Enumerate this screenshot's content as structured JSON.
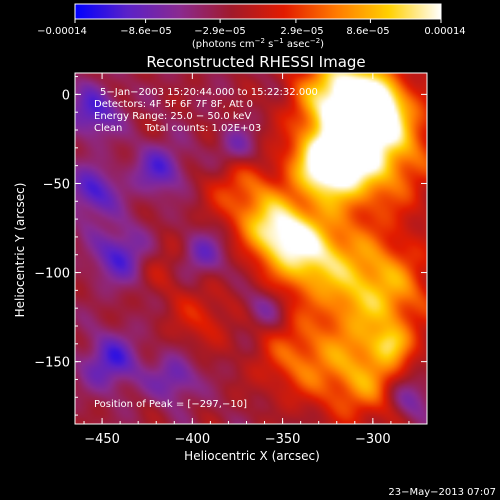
{
  "chart_data": {
    "type": "heatmap",
    "title": "Reconstructed RHESSI Image",
    "xlabel": "Heliocentric X (arcsec)",
    "ylabel": "Heliocentric Y (arcsec)",
    "xlim": [
      -465,
      -270
    ],
    "ylim": [
      -185,
      12
    ],
    "x_ticks": [
      -450,
      -400,
      -350,
      -300
    ],
    "x_tick_labels": [
      "−450",
      "−400",
      "−350",
      "−300"
    ],
    "y_ticks": [
      0,
      -50,
      -100,
      -150
    ],
    "y_tick_labels": [
      "0",
      "−50",
      "−100",
      "−150"
    ],
    "colorbar": {
      "range": [
        -0.00014,
        0.00014
      ],
      "tick_values": [
        -0.00014,
        -8.6e-05,
        -2.9e-05,
        2.9e-05,
        8.6e-05,
        0.00014
      ],
      "tick_labels": [
        "−0.00014",
        "−8.6e−05",
        "−2.9e−05",
        "2.9e−05",
        "8.6e−05",
        "0.00014"
      ],
      "units_line1": "(photons cm",
      "units_exp1": "−2",
      "units_line2": " s",
      "units_exp2": "−1",
      "units_line3": " asec",
      "units_exp3": "−2",
      "units_line4": ")",
      "stops": [
        "#0000ff",
        "#5a21c8",
        "#8a2a90",
        "#a11a2a",
        "#e21b00",
        "#ff7a00",
        "#ffd000",
        "#ffffff"
      ]
    },
    "annotations": {
      "time_range": "5−Jan−2003 15:20:44.000 to 15:22:32.000",
      "detectors": "Detectors: 4F 5F 6F 7F 8F, Att 0",
      "energy": "Energy Range: 25.0 − 50.0 keV",
      "algorithm": "Clean",
      "counts": "Total counts: 1.02E+03",
      "peak": "Position of Peak = [−297,−10]"
    },
    "image_blobs": [
      {
        "x": -303,
        "y": -28,
        "sigma": 24,
        "amp": 1.0
      },
      {
        "x": -318,
        "y": 2,
        "sigma": 16,
        "amp": 0.8
      },
      {
        "x": -325,
        "y": -40,
        "sigma": 13,
        "amp": 0.9
      },
      {
        "x": -300,
        "y": -8,
        "sigma": 11,
        "amp": 0.85
      },
      {
        "x": -338,
        "y": -88,
        "sigma": 16,
        "amp": 0.85
      },
      {
        "x": -355,
        "y": -75,
        "sigma": 12,
        "amp": 0.7
      },
      {
        "x": -300,
        "y": -110,
        "sigma": 22,
        "amp": 0.8
      },
      {
        "x": -305,
        "y": -160,
        "sigma": 18,
        "amp": 0.6
      },
      {
        "x": -342,
        "y": -148,
        "sigma": 16,
        "amp": 0.45
      },
      {
        "x": -372,
        "y": -55,
        "sigma": 14,
        "amp": 0.45
      },
      {
        "x": -415,
        "y": -95,
        "sigma": 11,
        "amp": 0.22
      },
      {
        "x": -395,
        "y": -125,
        "sigma": 12,
        "amp": 0.3
      },
      {
        "x": -455,
        "y": -55,
        "sigma": 10,
        "amp": -0.5
      },
      {
        "x": -418,
        "y": -42,
        "sigma": 10,
        "amp": -0.45
      },
      {
        "x": -440,
        "y": -90,
        "sigma": 11,
        "amp": -0.5
      },
      {
        "x": -395,
        "y": -90,
        "sigma": 9,
        "amp": -0.4
      },
      {
        "x": -445,
        "y": -150,
        "sigma": 11,
        "amp": -0.5
      },
      {
        "x": -410,
        "y": -160,
        "sigma": 9,
        "amp": -0.4
      },
      {
        "x": -455,
        "y": -10,
        "sigma": 10,
        "amp": -0.5
      },
      {
        "x": -375,
        "y": -30,
        "sigma": 8,
        "amp": -0.35
      },
      {
        "x": -360,
        "y": -120,
        "sigma": 8,
        "amp": -0.3
      },
      {
        "x": -280,
        "y": -170,
        "sigma": 9,
        "amp": -0.45
      },
      {
        "x": -290,
        "y": -140,
        "sigma": 7,
        "amp": 0.4
      }
    ]
  },
  "footer": {
    "timestamp": "23−May−2013 07:07"
  }
}
